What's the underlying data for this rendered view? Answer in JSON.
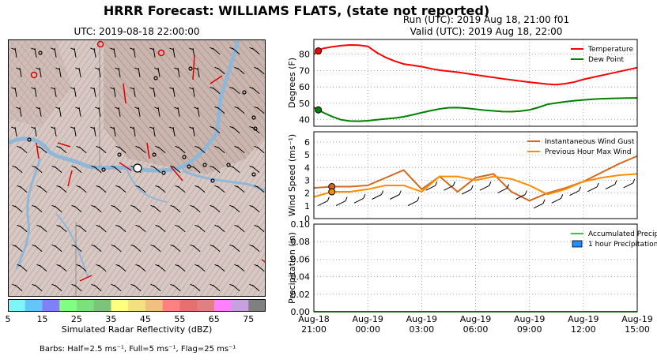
{
  "header": {
    "title": "HRRR Forecast: WILLIAMS FLATS, (state not reported)",
    "run": "Run (UTC): 2019 Aug 18, 21:00 f01",
    "valid": "Valid (UTC): 2019 Aug 18, 22:00"
  },
  "map": {
    "title": "UTC: 2019-08-18 22:00:00",
    "colorbar_label": "Simulated Radar Reflectivity (dBZ)",
    "colorbar_ticks": [
      "5",
      "15",
      "25",
      "35",
      "45",
      "55",
      "65",
      "75"
    ],
    "colorbar_colors": [
      "#7ef4fb",
      "#64c5f8",
      "#8080f8",
      "#80ff80",
      "#7ce07c",
      "#7cc47c",
      "#ffff80",
      "#f4e080",
      "#f0c080",
      "#ff8080",
      "#e67070",
      "#e08080",
      "#ff80ff",
      "#c8a0e0",
      "#808080"
    ],
    "barb_note": "Barbs: Half=2.5 ms⁻¹, Full=5 ms⁻¹, Flag=25 ms⁻¹"
  },
  "chart_data": [
    {
      "type": "line",
      "ylabel": "Degrees (F)",
      "ylim": [
        36,
        89
      ],
      "yticks": [
        "40",
        "50",
        "60",
        "70",
        "80"
      ],
      "grid": true,
      "legend": "top-right",
      "x": [
        0,
        0.25,
        0.5,
        1,
        1.5,
        2,
        2.5,
        3,
        3.5,
        4,
        4.5,
        5,
        5.5,
        6,
        6.5,
        7,
        7.5,
        8,
        8.5,
        9,
        9.5,
        10,
        10.5,
        11,
        11.5,
        12,
        12.5,
        13,
        13.5,
        14,
        14.5,
        15,
        15.5,
        16,
        16.5,
        17,
        17.5,
        18
      ],
      "series": [
        {
          "name": "Temperature",
          "color": "#ff0000",
          "marker_index": 1,
          "values": [
            80,
            82,
            83.5,
            84.5,
            85.2,
            85.6,
            85.5,
            84.8,
            81,
            78,
            75.8,
            74,
            73.2,
            72.4,
            71.2,
            70.2,
            69.6,
            69,
            68.2,
            67.4,
            66.6,
            65.8,
            65,
            64.3,
            63.6,
            62.9,
            62.3,
            61.7,
            61.4,
            62,
            63,
            64.6,
            65.8,
            67,
            68.2,
            69.4,
            70.6,
            71.8
          ]
        },
        {
          "name": "Dew Point",
          "color": "#008000",
          "marker_index": 1,
          "values": [
            47.5,
            46,
            44.5,
            42,
            40,
            39.2,
            39.1,
            39.4,
            40,
            40.5,
            41,
            41.8,
            43,
            44.3,
            45.5,
            46.6,
            47.3,
            47.4,
            47,
            46.4,
            45.8,
            45.4,
            45,
            44.9,
            45.3,
            46,
            47.5,
            49.4,
            50.2,
            51,
            51.6,
            52.1,
            52.5,
            52.8,
            53,
            53.1,
            53.2,
            53.3
          ]
        }
      ]
    },
    {
      "type": "line",
      "ylabel": "Wind Speed (ms⁻¹)",
      "ylim": [
        0,
        6.8
      ],
      "yticks": [
        "0",
        "1",
        "2",
        "3",
        "4",
        "5",
        "6"
      ],
      "grid": true,
      "legend": "top-right",
      "x": [
        0,
        1,
        2,
        3,
        4,
        5,
        6,
        7,
        8,
        9,
        10,
        11,
        12,
        13,
        14,
        15,
        16,
        17,
        18
      ],
      "series": [
        {
          "name": "Instantaneous Wind Gust",
          "color": "#d2691e",
          "marker_index": 1,
          "values": [
            2.4,
            2.5,
            2.5,
            2.6,
            3.2,
            3.8,
            2.3,
            3.3,
            2.1,
            3.2,
            3.5,
            2.1,
            1.4,
            2.0,
            2.4,
            2.9,
            3.6,
            4.3,
            4.9
          ]
        },
        {
          "name": "Previous Hour Max Wind",
          "color": "#ff8c00",
          "marker_index": 1,
          "values": [
            1.7,
            2.1,
            2.1,
            2.3,
            2.6,
            2.6,
            2.1,
            3.3,
            3.3,
            3.0,
            3.3,
            3.1,
            2.6,
            1.9,
            2.3,
            2.9,
            3.2,
            3.4,
            3.5
          ]
        }
      ]
    },
    {
      "type": "line",
      "ylabel": "Precipitation (in)",
      "ylim": [
        0,
        0.1
      ],
      "yticks": [
        "0.00",
        "0.02",
        "0.04",
        "0.06",
        "0.08",
        "0.10"
      ],
      "xlim": [
        0,
        18
      ],
      "xticks": [
        [
          "Aug-18",
          "21:00"
        ],
        [
          "Aug-19",
          "00:00"
        ],
        [
          "Aug-19",
          "03:00"
        ],
        [
          "Aug-19",
          "06:00"
        ],
        [
          "Aug-19",
          "09:00"
        ],
        [
          "Aug-19",
          "12:00"
        ],
        [
          "Aug-19",
          "15:00"
        ]
      ],
      "grid": true,
      "legend": "top-right",
      "series": [
        {
          "name": "Accumulated Precipitation",
          "color": "#32cd32",
          "values": [
            0,
            0
          ]
        },
        {
          "name": "1 hour Precipitation",
          "color": "#1e90ff",
          "kind": "bar",
          "values": [
            0
          ]
        }
      ]
    }
  ]
}
